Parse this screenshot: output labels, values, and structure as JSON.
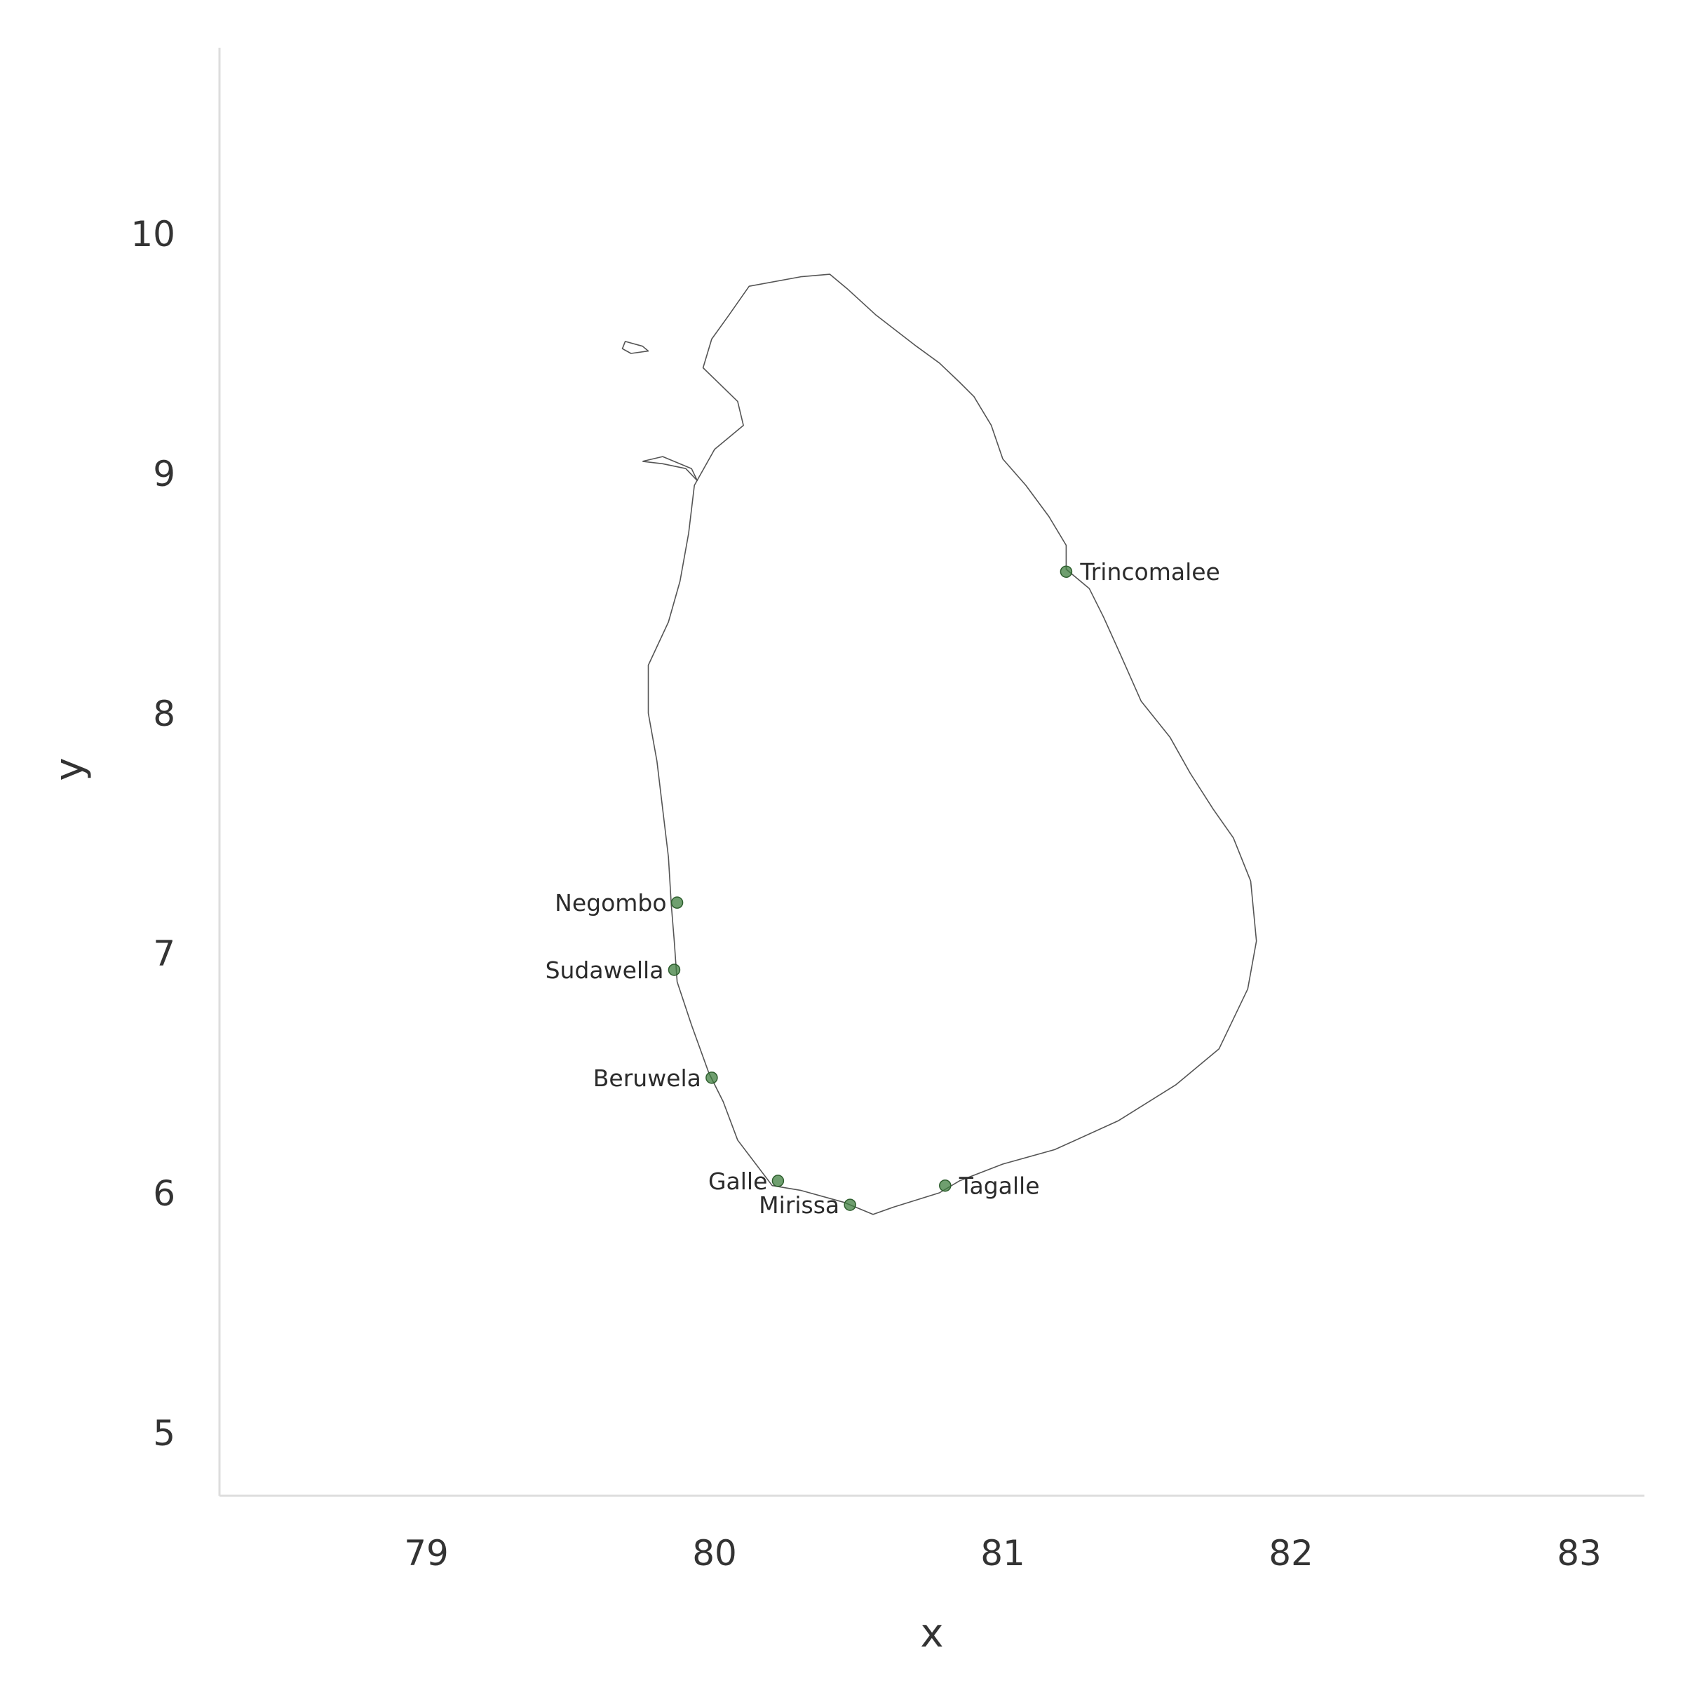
{
  "chart_data": {
    "type": "scatter",
    "xlabel": "x",
    "ylabel": "y",
    "xlim": [
      78.3,
      83.2
    ],
    "ylim": [
      4.75,
      10.78
    ],
    "x_ticks": [
      {
        "value": 79,
        "label": "79"
      },
      {
        "value": 80,
        "label": "80"
      },
      {
        "value": 81,
        "label": "81"
      },
      {
        "value": 82,
        "label": "82"
      },
      {
        "value": 83,
        "label": "83"
      }
    ],
    "y_ticks": [
      {
        "value": 5,
        "label": "5"
      },
      {
        "value": 6,
        "label": "6"
      },
      {
        "value": 7,
        "label": "7"
      },
      {
        "value": 8,
        "label": "8"
      },
      {
        "value": 9,
        "label": "9"
      },
      {
        "value": 10,
        "label": "10"
      }
    ],
    "grid": false,
    "marker_color": "#3f7f3f",
    "coastline_color": "#555555",
    "points": [
      {
        "name": "Trincomalee",
        "x": 81.22,
        "y": 8.59,
        "label_side": "right"
      },
      {
        "name": "Negombo",
        "x": 79.87,
        "y": 7.21,
        "label_side": "left"
      },
      {
        "name": "Sudawella",
        "x": 79.86,
        "y": 6.93,
        "label_side": "left"
      },
      {
        "name": "Beruwela",
        "x": 79.99,
        "y": 6.48,
        "label_side": "left"
      },
      {
        "name": "Galle",
        "x": 80.22,
        "y": 6.05,
        "label_side": "left"
      },
      {
        "name": "Mirissa",
        "x": 80.47,
        "y": 5.95,
        "label_side": "left"
      },
      {
        "name": "Tagalle",
        "x": 80.8,
        "y": 6.03,
        "label_side": "right"
      }
    ]
  }
}
